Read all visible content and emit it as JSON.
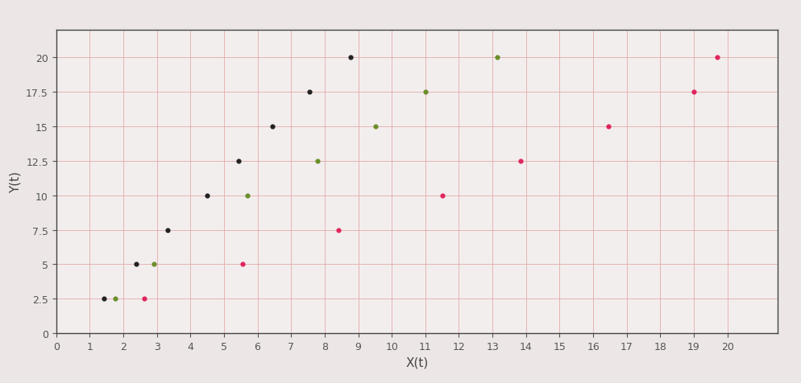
{
  "chart_data": {
    "type": "scatter",
    "x_label": "X(t)",
    "y_label": "Y(t)",
    "series": [
      {
        "color": "#222222",
        "marker": "o",
        "x": [
          1.42,
          2.39,
          3.31,
          4.5,
          5.44,
          6.44,
          7.55,
          8.76
        ],
        "values": [
          2.5,
          5,
          7.5,
          10,
          12.5,
          15,
          17.5,
          20
        ]
      },
      {
        "color": "#6a8f2a",
        "marker": "o",
        "x": [
          1.76,
          2.92,
          5.69,
          7.78,
          9.52,
          11.0,
          13.15
        ],
        "values": [
          2.5,
          5,
          10,
          12.5,
          15,
          17.5,
          20
        ]
      },
      {
        "color": "#e0245e",
        "marker": "o",
        "x": [
          2.63,
          5.55,
          8.4,
          11.52,
          13.83,
          16.46,
          19.0,
          19.7
        ],
        "values": [
          2.5,
          5,
          7.5,
          10,
          12.5,
          15,
          17.5,
          20
        ]
      }
    ],
    "xlim": [
      0,
      21.5
    ],
    "ylim": [
      0,
      22
    ],
    "xticks": [
      0,
      1,
      2,
      3,
      4,
      5,
      6,
      7,
      8,
      9,
      10,
      11,
      12,
      13,
      14,
      15,
      16,
      17,
      18,
      19,
      20
    ],
    "yticks": [
      0,
      2.5,
      5,
      7.5,
      10,
      12.5,
      15,
      17.5,
      20
    ],
    "grid": true
  }
}
